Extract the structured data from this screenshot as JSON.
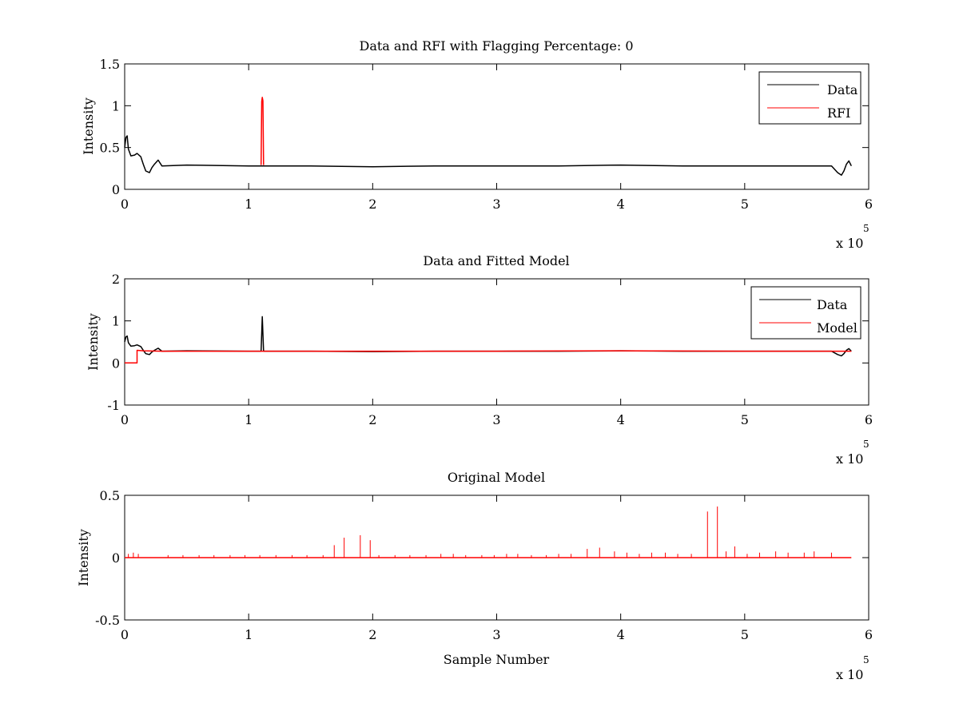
{
  "chart_data": [
    {
      "type": "line",
      "title": "Data and RFI with Flagging Percentage: 0",
      "xlabel": "",
      "ylabel": "Intensity",
      "xlim": [
        0,
        6
      ],
      "ylim": [
        0,
        1.5
      ],
      "x_multiplier": "x 10",
      "x_multiplier_exp": "5",
      "xticks": [
        0,
        1,
        2,
        3,
        4,
        5,
        6
      ],
      "yticks": [
        0,
        0.5,
        1,
        1.5
      ],
      "xtick_labels": [
        "0",
        "1",
        "2",
        "3",
        "4",
        "5",
        "6"
      ],
      "ytick_labels": [
        "0",
        "0.5",
        "1",
        "1.5"
      ],
      "legend": {
        "position": "top-right"
      },
      "series": [
        {
          "name": "Data",
          "color": "#000000",
          "x": [
            0,
            0.01,
            0.02,
            0.03,
            0.05,
            0.08,
            0.1,
            0.13,
            0.15,
            0.17,
            0.2,
            0.22,
            0.24,
            0.27,
            0.3,
            0.5,
            1.0,
            1.5,
            2.0,
            2.5,
            3.0,
            3.5,
            4.0,
            4.5,
            5.0,
            5.5,
            5.7,
            5.75,
            5.78,
            5.8,
            5.82,
            5.84,
            5.86
          ],
          "y": [
            0.5,
            0.62,
            0.64,
            0.48,
            0.4,
            0.41,
            0.43,
            0.39,
            0.3,
            0.22,
            0.2,
            0.26,
            0.3,
            0.35,
            0.28,
            0.29,
            0.28,
            0.28,
            0.27,
            0.28,
            0.28,
            0.28,
            0.29,
            0.28,
            0.28,
            0.28,
            0.28,
            0.2,
            0.17,
            0.22,
            0.3,
            0.34,
            0.28
          ]
        },
        {
          "name": "RFI",
          "color": "#ff0000",
          "x": [
            1.1,
            1.105,
            1.11,
            1.115,
            1.12
          ],
          "y": [
            0.29,
            1.05,
            1.1,
            1.06,
            0.29
          ]
        }
      ]
    },
    {
      "type": "line",
      "title": "Data and Fitted Model",
      "xlabel": "",
      "ylabel": "Intensity",
      "xlim": [
        0,
        6
      ],
      "ylim": [
        -1,
        2
      ],
      "x_multiplier": "x 10",
      "x_multiplier_exp": "5",
      "xticks": [
        0,
        1,
        2,
        3,
        4,
        5,
        6
      ],
      "yticks": [
        -1,
        0,
        1,
        2
      ],
      "xtick_labels": [
        "0",
        "1",
        "2",
        "3",
        "4",
        "5",
        "6"
      ],
      "ytick_labels": [
        "-1",
        "0",
        "1",
        "2"
      ],
      "legend": {
        "position": "top-right"
      },
      "series": [
        {
          "name": "Data",
          "color": "#000000",
          "x": [
            0,
            0.01,
            0.02,
            0.03,
            0.05,
            0.08,
            0.1,
            0.13,
            0.15,
            0.17,
            0.2,
            0.22,
            0.24,
            0.27,
            0.3,
            0.5,
            1.0,
            1.1,
            1.11,
            1.12,
            1.5,
            2.0,
            2.5,
            3.0,
            3.5,
            4.0,
            4.5,
            5.0,
            5.5,
            5.7,
            5.75,
            5.78,
            5.8,
            5.82,
            5.84,
            5.86
          ],
          "y": [
            0.5,
            0.62,
            0.64,
            0.48,
            0.4,
            0.41,
            0.43,
            0.39,
            0.3,
            0.22,
            0.2,
            0.26,
            0.3,
            0.35,
            0.28,
            0.29,
            0.28,
            0.28,
            1.1,
            0.28,
            0.28,
            0.27,
            0.28,
            0.28,
            0.28,
            0.29,
            0.28,
            0.28,
            0.28,
            0.28,
            0.2,
            0.17,
            0.22,
            0.3,
            0.34,
            0.28
          ]
        },
        {
          "name": "Model",
          "color": "#ff0000",
          "x": [
            0,
            0.1,
            0.1,
            0.15,
            0.3,
            1.0,
            2.0,
            3.0,
            4.0,
            5.0,
            5.86
          ],
          "y": [
            0.0,
            0.0,
            0.3,
            0.29,
            0.28,
            0.28,
            0.28,
            0.28,
            0.29,
            0.28,
            0.28
          ]
        }
      ]
    },
    {
      "type": "line",
      "title": "Original Model",
      "xlabel": "Sample Number",
      "ylabel": "Intensity",
      "xlim": [
        0,
        6
      ],
      "ylim": [
        -0.5,
        0.5
      ],
      "x_multiplier": "x 10",
      "x_multiplier_exp": "5",
      "xticks": [
        0,
        1,
        2,
        3,
        4,
        5,
        6
      ],
      "yticks": [
        -0.5,
        0,
        0.5
      ],
      "xtick_labels": [
        "0",
        "1",
        "2",
        "3",
        "4",
        "5",
        "6"
      ],
      "ytick_labels": [
        "-0.5",
        "0",
        "0.5"
      ],
      "series": [
        {
          "name": "",
          "color": "#ff0000",
          "baseline": 0,
          "baseline_range": [
            0,
            5.86
          ],
          "spikes": [
            [
              0.03,
              0.03
            ],
            [
              0.07,
              0.04
            ],
            [
              0.11,
              0.03
            ],
            [
              0.35,
              0.02
            ],
            [
              0.47,
              0.02
            ],
            [
              0.6,
              0.02
            ],
            [
              0.72,
              0.02
            ],
            [
              0.85,
              0.02
            ],
            [
              0.97,
              0.02
            ],
            [
              1.09,
              0.02
            ],
            [
              1.22,
              0.02
            ],
            [
              1.35,
              0.02
            ],
            [
              1.47,
              0.02
            ],
            [
              1.6,
              0.02
            ],
            [
              1.69,
              0.1
            ],
            [
              1.77,
              0.16
            ],
            [
              1.9,
              0.18
            ],
            [
              1.98,
              0.14
            ],
            [
              2.05,
              0.02
            ],
            [
              2.18,
              0.02
            ],
            [
              2.3,
              0.02
            ],
            [
              2.43,
              0.02
            ],
            [
              2.55,
              0.03
            ],
            [
              2.65,
              0.03
            ],
            [
              2.75,
              0.02
            ],
            [
              2.88,
              0.02
            ],
            [
              2.98,
              0.02
            ],
            [
              3.08,
              0.03
            ],
            [
              3.17,
              0.03
            ],
            [
              3.28,
              0.02
            ],
            [
              3.4,
              0.02
            ],
            [
              3.5,
              0.03
            ],
            [
              3.6,
              0.03
            ],
            [
              3.73,
              0.07
            ],
            [
              3.83,
              0.08
            ],
            [
              3.95,
              0.05
            ],
            [
              4.05,
              0.04
            ],
            [
              4.15,
              0.03
            ],
            [
              4.25,
              0.04
            ],
            [
              4.36,
              0.04
            ],
            [
              4.46,
              0.03
            ],
            [
              4.57,
              0.03
            ],
            [
              4.7,
              0.37
            ],
            [
              4.78,
              0.41
            ],
            [
              4.85,
              0.05
            ],
            [
              4.92,
              0.09
            ],
            [
              5.02,
              0.03
            ],
            [
              5.12,
              0.04
            ],
            [
              5.25,
              0.05
            ],
            [
              5.35,
              0.04
            ],
            [
              5.48,
              0.04
            ],
            [
              5.56,
              0.05
            ],
            [
              5.7,
              0.04
            ]
          ]
        }
      ]
    }
  ]
}
